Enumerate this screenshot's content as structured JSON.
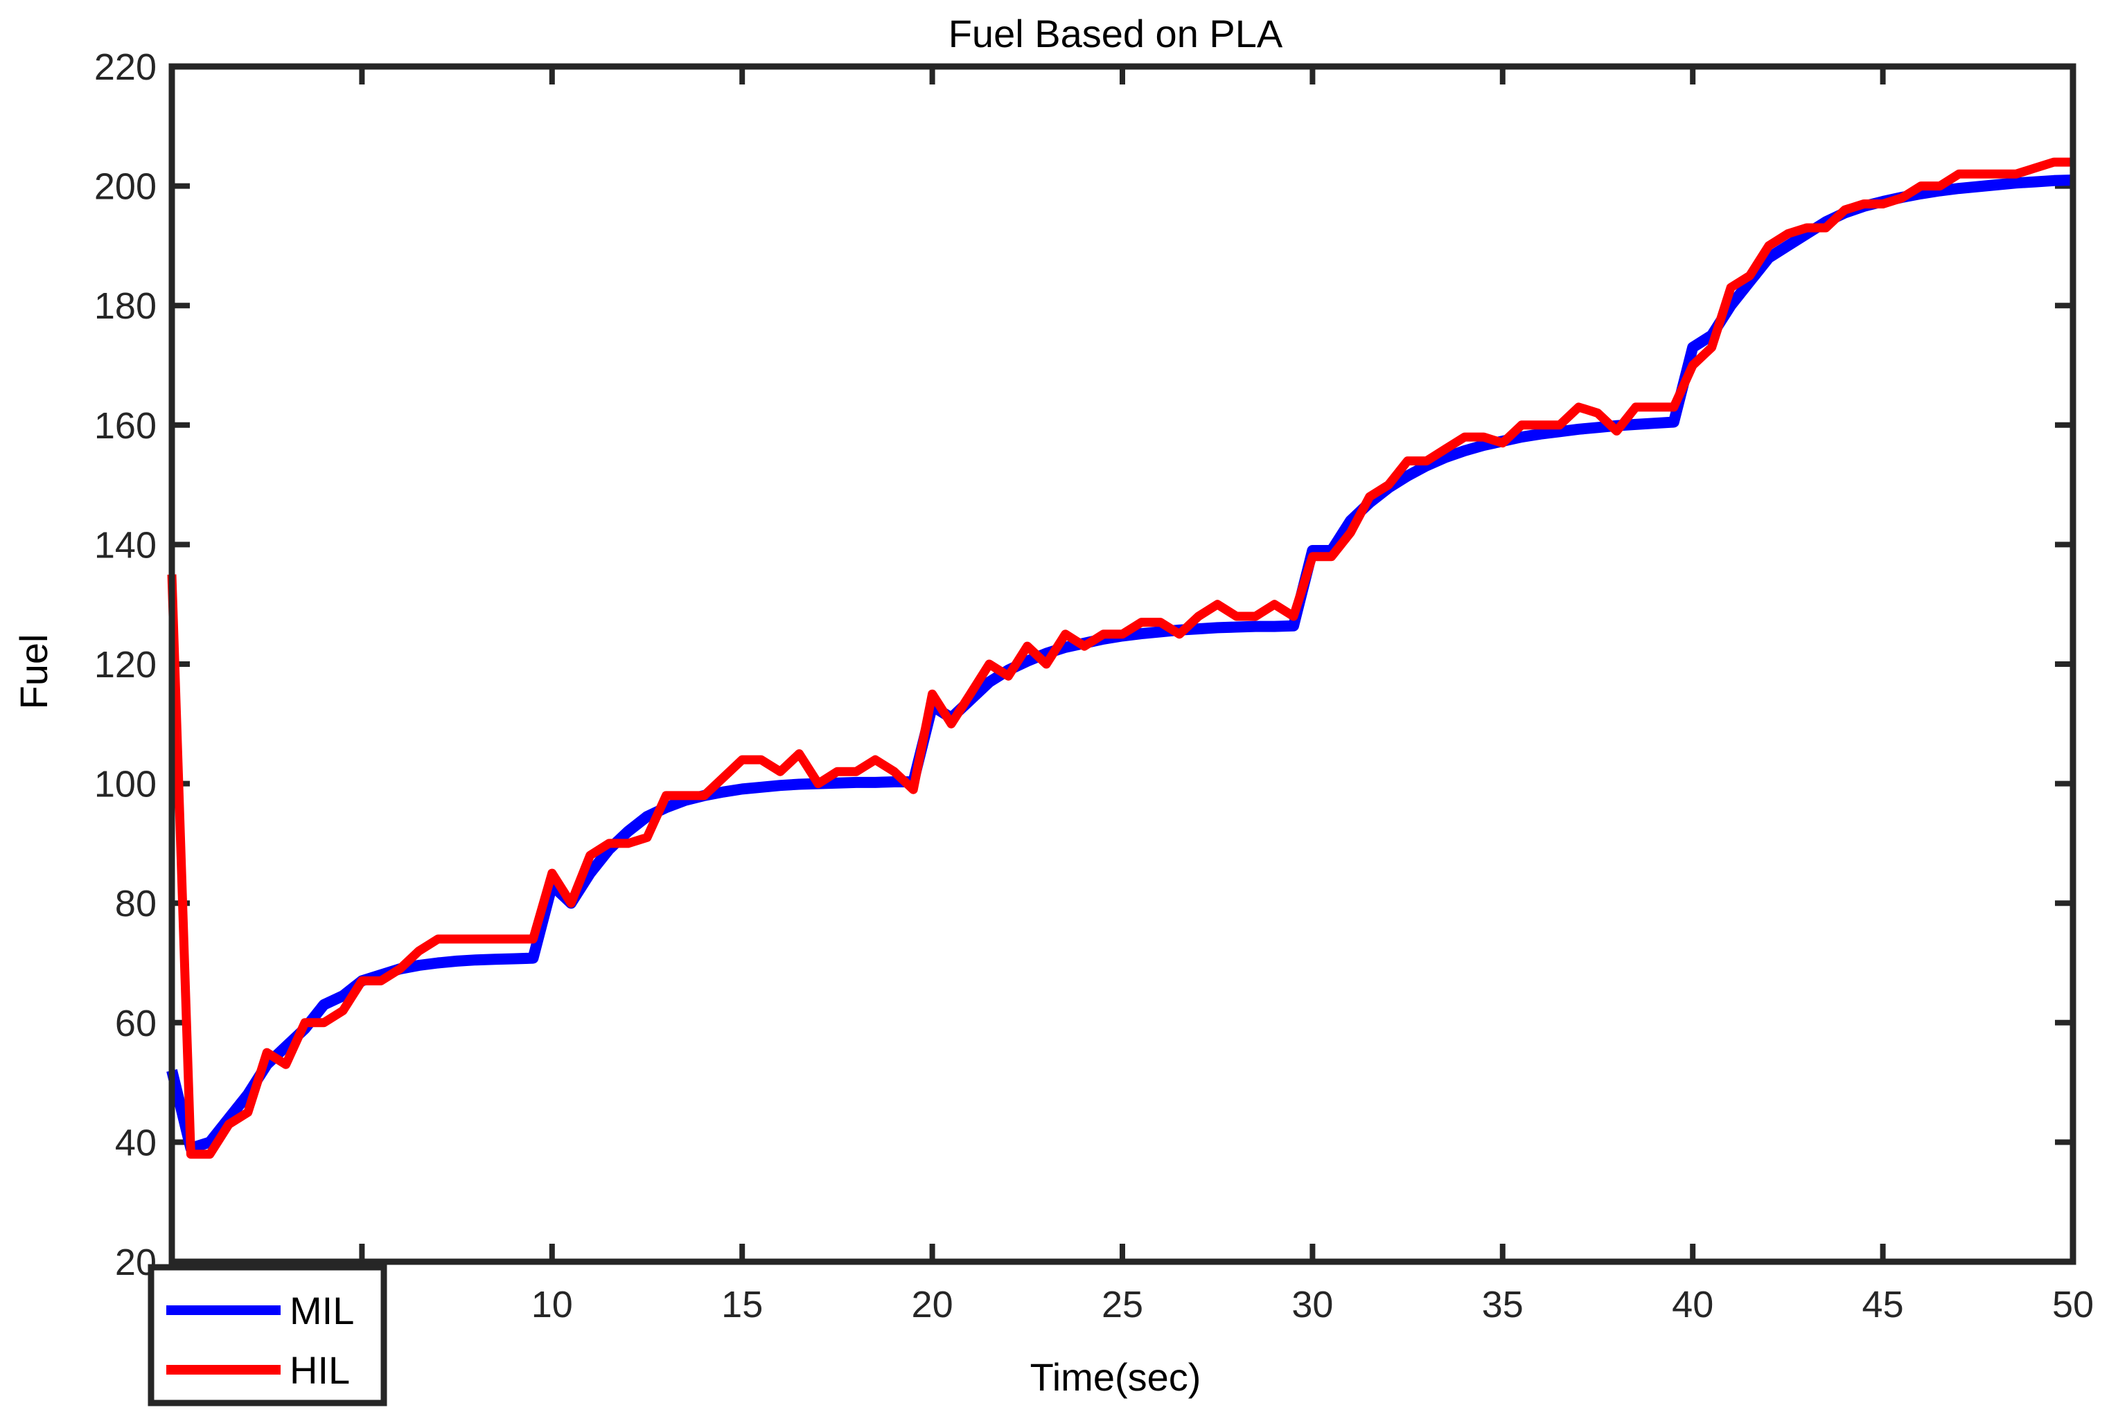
{
  "chart_data": {
    "type": "line",
    "title": "Fuel Based on PLA",
    "xlabel": "Time(sec)",
    "ylabel": "Fuel",
    "xlim": [
      0,
      50
    ],
    "ylim": [
      20,
      220
    ],
    "x_ticks": [
      10,
      15,
      20,
      25,
      30,
      35,
      40,
      45,
      50
    ],
    "y_ticks": [
      20,
      40,
      60,
      80,
      100,
      120,
      140,
      160,
      180,
      200,
      220
    ],
    "grid": false,
    "legend_position": "bottom-left",
    "series": [
      {
        "name": "MIL",
        "color": "#0000ff",
        "points": [
          [
            0,
            52
          ],
          [
            0.5,
            39
          ],
          [
            1,
            40
          ],
          [
            1.5,
            44
          ],
          [
            2,
            48
          ],
          [
            2.5,
            53
          ],
          [
            3,
            56
          ],
          [
            3.5,
            59
          ],
          [
            4,
            63
          ],
          [
            4.5,
            64.5
          ],
          [
            5,
            67
          ],
          [
            5.5,
            68
          ],
          [
            6,
            69
          ],
          [
            6.5,
            69.6
          ],
          [
            7,
            70
          ],
          [
            7.5,
            70.3
          ],
          [
            8,
            70.5
          ],
          [
            8.5,
            70.6
          ],
          [
            9,
            70.7
          ],
          [
            9.5,
            70.8
          ],
          [
            10,
            83
          ],
          [
            10.5,
            80
          ],
          [
            11,
            85
          ],
          [
            11.5,
            89
          ],
          [
            12,
            92
          ],
          [
            12.5,
            94.5
          ],
          [
            13,
            96
          ],
          [
            13.5,
            97.2
          ],
          [
            14,
            98
          ],
          [
            14.5,
            98.6
          ],
          [
            15,
            99.1
          ],
          [
            15.5,
            99.4
          ],
          [
            16,
            99.7
          ],
          [
            16.5,
            99.9
          ],
          [
            17,
            100
          ],
          [
            17.5,
            100.1
          ],
          [
            18,
            100.2
          ],
          [
            18.5,
            100.2
          ],
          [
            19,
            100.3
          ],
          [
            19.5,
            100.3
          ],
          [
            20,
            113
          ],
          [
            20.5,
            111
          ],
          [
            21,
            114
          ],
          [
            21.5,
            117
          ],
          [
            22,
            119
          ],
          [
            22.5,
            120.5
          ],
          [
            23,
            121.8
          ],
          [
            23.5,
            122.8
          ],
          [
            24,
            123.5
          ],
          [
            24.5,
            124.2
          ],
          [
            25,
            124.7
          ],
          [
            25.5,
            125.1
          ],
          [
            26,
            125.4
          ],
          [
            26.5,
            125.7
          ],
          [
            27,
            125.9
          ],
          [
            27.5,
            126.1
          ],
          [
            28,
            126.2
          ],
          [
            28.5,
            126.3
          ],
          [
            29,
            126.3
          ],
          [
            29.5,
            126.4
          ],
          [
            30,
            139
          ],
          [
            30.5,
            139
          ],
          [
            31,
            144
          ],
          [
            31.5,
            147
          ],
          [
            32,
            149.5
          ],
          [
            32.5,
            151.5
          ],
          [
            33,
            153.2
          ],
          [
            33.5,
            154.6
          ],
          [
            34,
            155.7
          ],
          [
            34.5,
            156.6
          ],
          [
            35,
            157.3
          ],
          [
            35.5,
            158
          ],
          [
            36,
            158.5
          ],
          [
            36.5,
            158.9
          ],
          [
            37,
            159.3
          ],
          [
            37.5,
            159.6
          ],
          [
            38,
            159.9
          ],
          [
            38.5,
            160.1
          ],
          [
            39,
            160.3
          ],
          [
            39.5,
            160.5
          ],
          [
            40,
            173
          ],
          [
            40.5,
            175
          ],
          [
            41,
            180
          ],
          [
            41.5,
            184
          ],
          [
            42,
            188
          ],
          [
            42.5,
            190
          ],
          [
            43,
            192
          ],
          [
            43.5,
            194
          ],
          [
            44,
            195.5
          ],
          [
            44.5,
            196.6
          ],
          [
            45,
            197.4
          ],
          [
            45.5,
            198.1
          ],
          [
            46,
            198.7
          ],
          [
            46.5,
            199.2
          ],
          [
            47,
            199.6
          ],
          [
            47.5,
            199.9
          ],
          [
            48,
            200.2
          ],
          [
            48.5,
            200.5
          ],
          [
            49,
            200.7
          ],
          [
            49.5,
            200.9
          ],
          [
            50,
            201
          ]
        ]
      },
      {
        "name": "HIL",
        "color": "#ff0000",
        "points": [
          [
            0,
            135
          ],
          [
            0.5,
            38
          ],
          [
            1,
            38
          ],
          [
            1.5,
            43
          ],
          [
            2,
            45
          ],
          [
            2.5,
            55
          ],
          [
            3,
            53
          ],
          [
            3.5,
            60
          ],
          [
            4,
            60
          ],
          [
            4.5,
            62
          ],
          [
            5,
            67
          ],
          [
            5.5,
            67
          ],
          [
            6,
            69
          ],
          [
            6.5,
            72
          ],
          [
            7,
            74
          ],
          [
            7.5,
            74
          ],
          [
            8,
            74
          ],
          [
            8.5,
            74
          ],
          [
            9,
            74
          ],
          [
            9.5,
            74
          ],
          [
            10,
            85
          ],
          [
            10.5,
            80
          ],
          [
            11,
            88
          ],
          [
            11.5,
            90
          ],
          [
            12,
            90
          ],
          [
            12.5,
            91
          ],
          [
            13,
            98
          ],
          [
            13.5,
            98
          ],
          [
            14,
            98
          ],
          [
            14.5,
            101
          ],
          [
            15,
            104
          ],
          [
            15.5,
            104
          ],
          [
            16,
            102
          ],
          [
            16.5,
            105
          ],
          [
            17,
            100
          ],
          [
            17.5,
            102
          ],
          [
            18,
            102
          ],
          [
            18.5,
            104
          ],
          [
            19,
            102
          ],
          [
            19.5,
            99
          ],
          [
            20,
            115
          ],
          [
            20.5,
            110
          ],
          [
            21,
            115
          ],
          [
            21.5,
            120
          ],
          [
            22,
            118
          ],
          [
            22.5,
            123
          ],
          [
            23,
            120
          ],
          [
            23.5,
            125
          ],
          [
            24,
            123
          ],
          [
            24.5,
            125
          ],
          [
            25,
            125
          ],
          [
            25.5,
            127
          ],
          [
            26,
            127
          ],
          [
            26.5,
            125
          ],
          [
            27,
            128
          ],
          [
            27.5,
            130
          ],
          [
            28,
            128
          ],
          [
            28.5,
            128
          ],
          [
            29,
            130
          ],
          [
            29.5,
            128
          ],
          [
            30,
            138
          ],
          [
            30.5,
            138
          ],
          [
            31,
            142
          ],
          [
            31.5,
            148
          ],
          [
            32,
            150
          ],
          [
            32.5,
            154
          ],
          [
            33,
            154
          ],
          [
            33.5,
            156
          ],
          [
            34,
            158
          ],
          [
            34.5,
            158
          ],
          [
            35,
            157
          ],
          [
            35.5,
            160
          ],
          [
            36,
            160
          ],
          [
            36.5,
            160
          ],
          [
            37,
            163
          ],
          [
            37.5,
            162
          ],
          [
            38,
            159
          ],
          [
            38.5,
            163
          ],
          [
            39,
            163
          ],
          [
            39.5,
            163
          ],
          [
            40,
            170
          ],
          [
            40.5,
            173
          ],
          [
            41,
            183
          ],
          [
            41.5,
            185
          ],
          [
            42,
            190
          ],
          [
            42.5,
            192
          ],
          [
            43,
            193
          ],
          [
            43.5,
            193
          ],
          [
            44,
            196
          ],
          [
            44.5,
            197
          ],
          [
            45,
            197
          ],
          [
            45.5,
            198
          ],
          [
            46,
            200
          ],
          [
            46.5,
            200
          ],
          [
            47,
            202
          ],
          [
            47.5,
            202
          ],
          [
            48,
            202
          ],
          [
            48.5,
            202
          ],
          [
            49,
            203
          ],
          [
            49.5,
            204
          ],
          [
            50,
            204
          ]
        ]
      }
    ]
  }
}
